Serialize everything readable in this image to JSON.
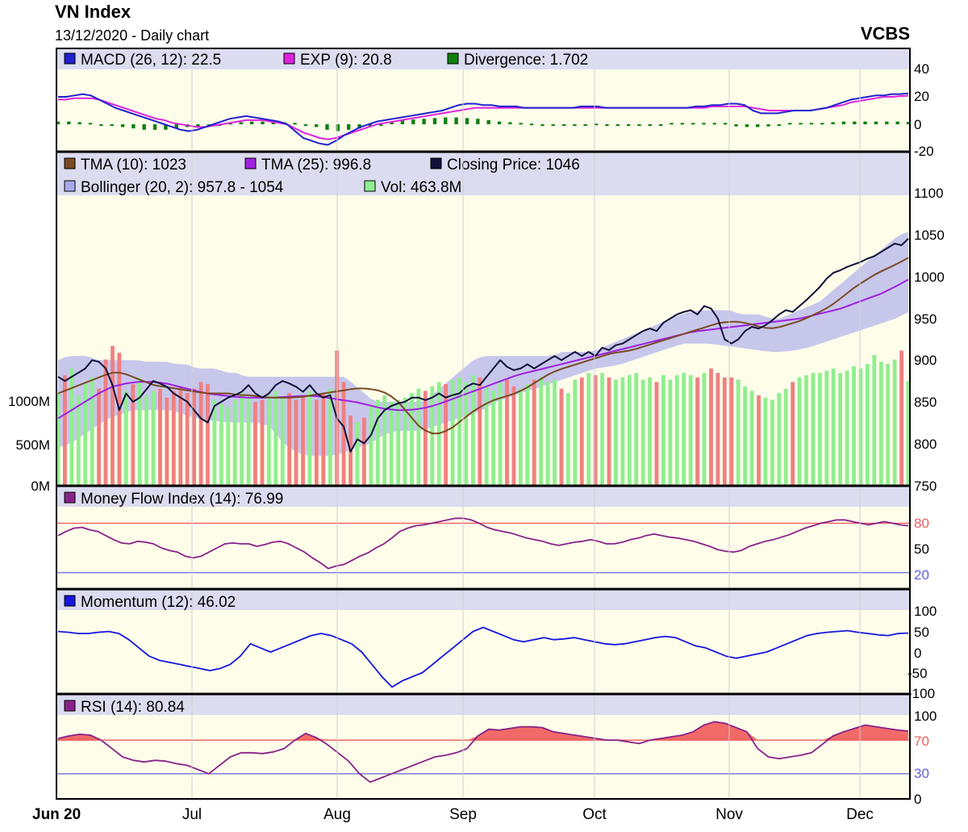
{
  "header": {
    "title": "VN Index",
    "subtitle": "13/12/2020 - Daily chart",
    "brand": "VCBS"
  },
  "colors": {
    "plot_bg": "#fdfdea",
    "legend_bg": "#dcdcf0",
    "bollinger_fill": "#b4b4ec",
    "macd": "#2020d0",
    "exp": "#e020e0",
    "divergence": "#108010",
    "tma10": "#7a4a22",
    "tma25": "#a020e0",
    "close": "#101038",
    "vol_up": "#90ee90",
    "vol_down": "#f08080",
    "mfi": "#882288",
    "momentum": "#1515e0",
    "rsi": "#882288",
    "upper_line": "#ef5b5b",
    "lower_line": "#7070e0",
    "overbought_fill": "#f05050"
  },
  "x_axis": {
    "ticks": [
      "Jun 20",
      "Jul",
      "Aug",
      "Sep",
      "Oct",
      "Nov",
      "Dec"
    ]
  },
  "panels": {
    "macd": {
      "legend": [
        "MACD (26, 12): 22.5",
        "EXP (9): 20.8",
        "Divergence: 1.702"
      ],
      "ticks": [
        "40",
        "20",
        "0",
        "-20"
      ]
    },
    "price": {
      "legend_row1": [
        "TMA (10): 1023",
        "TMA (25): 996.8",
        "Closing Price: 1046"
      ],
      "legend_row2": [
        "Bollinger (20, 2): 957.8 - 1054",
        "Vol: 463.8M"
      ],
      "ticks": [
        "1100",
        "1050",
        "1000",
        "950",
        "900",
        "850",
        "800",
        "750"
      ],
      "volume_ticks": [
        "1000M",
        "500M",
        "0M"
      ]
    },
    "mfi": {
      "legend": [
        "Money Flow Index (14): 76.99"
      ],
      "ticks": [
        "80",
        "50",
        "20"
      ]
    },
    "momentum": {
      "legend": [
        "Momentum (12): 46.02"
      ],
      "ticks": [
        "100",
        "50",
        "0",
        "-50",
        "-100"
      ]
    },
    "rsi": {
      "legend": [
        "RSI (14): 80.84"
      ],
      "ticks": [
        "100",
        "70",
        "30",
        "0"
      ]
    }
  },
  "chart_data": {
    "type": "line",
    "title": "VN Index",
    "subtitle": "13/12/2020 - Daily chart",
    "x_tick_labels": [
      "Jun 20",
      "Jul",
      "Aug",
      "Sep",
      "Oct",
      "Nov",
      "Dec"
    ],
    "close": [
      880,
      875,
      880,
      885,
      890,
      900,
      898,
      890,
      870,
      840,
      860,
      850,
      855,
      865,
      875,
      872,
      868,
      860,
      855,
      850,
      840,
      830,
      825,
      845,
      850,
      855,
      858,
      862,
      870,
      860,
      855,
      860,
      870,
      875,
      872,
      868,
      862,
      870,
      860,
      855,
      858,
      830,
      820,
      790,
      805,
      800,
      810,
      830,
      840,
      845,
      848,
      850,
      855,
      855,
      852,
      855,
      860,
      855,
      858,
      860,
      868,
      872,
      870,
      880,
      890,
      900,
      892,
      888,
      890,
      895,
      890,
      895,
      900,
      905,
      900,
      905,
      910,
      905,
      910,
      905,
      915,
      912,
      918,
      920,
      925,
      930,
      935,
      938,
      935,
      945,
      950,
      955,
      958,
      960,
      955,
      965,
      962,
      950,
      925,
      920,
      925,
      935,
      940,
      938,
      942,
      948,
      955,
      960,
      958,
      965,
      972,
      980,
      988,
      998,
      1005,
      1008,
      1012,
      1015,
      1018,
      1022,
      1025,
      1030,
      1035,
      1040,
      1038,
      1046
    ],
    "macd": [
      20,
      20,
      21,
      22,
      21,
      18,
      15,
      12,
      10,
      8,
      6,
      4,
      2,
      0,
      -2,
      -4,
      -5,
      -4,
      -2,
      0,
      2,
      4,
      5,
      6,
      5,
      4,
      3,
      2,
      0,
      -5,
      -10,
      -12,
      -14,
      -15,
      -12,
      -8,
      -5,
      -2,
      0,
      2,
      3,
      4,
      5,
      6,
      7,
      8,
      9,
      10,
      12,
      14,
      15,
      15,
      14,
      14,
      13,
      13,
      13,
      12,
      12,
      12,
      12,
      12,
      12,
      12,
      13,
      13,
      13,
      12,
      12,
      12,
      12,
      12,
      12,
      12,
      12,
      12,
      12,
      12,
      13,
      13,
      14,
      14,
      15,
      15,
      14,
      10,
      8,
      8,
      8,
      9,
      10,
      10,
      10,
      11,
      12,
      14,
      16,
      18,
      19,
      20,
      21,
      21,
      22,
      22,
      22.5
    ],
    "exp": [
      18,
      18,
      19,
      19,
      19,
      18,
      16,
      14,
      12,
      10,
      8,
      6,
      4,
      3,
      1,
      0,
      -1,
      -2,
      -2,
      -1,
      0,
      1,
      2,
      3,
      3,
      3,
      2,
      1,
      0,
      -3,
      -6,
      -8,
      -10,
      -11,
      -10,
      -8,
      -6,
      -4,
      -2,
      0,
      1,
      2,
      3,
      4,
      5,
      6,
      7,
      8,
      9,
      10,
      11,
      12,
      12,
      12,
      12,
      12,
      12,
      12,
      12,
      12,
      12,
      12,
      12,
      12,
      12,
      12,
      12,
      12,
      12,
      12,
      12,
      12,
      12,
      12,
      12,
      12,
      12,
      12,
      12,
      12,
      13,
      13,
      13,
      13,
      13,
      12,
      11,
      10,
      10,
      10,
      10,
      10,
      10,
      11,
      12,
      13,
      14,
      16,
      17,
      18,
      19,
      20,
      20,
      20.5,
      20.8
    ],
    "divergence": [
      2,
      2,
      1.5,
      1,
      0,
      -1,
      -2,
      -3,
      -4,
      -4,
      -4,
      -3,
      -2,
      -2,
      -1,
      0,
      1,
      1.5,
      2,
      2,
      2,
      1.5,
      1,
      0,
      -2,
      -4,
      -5,
      -4,
      -3,
      -2,
      0,
      2,
      3,
      3.5,
      4,
      4.5,
      5,
      5,
      4.5,
      4,
      3,
      2,
      1.5,
      1,
      0.5,
      0,
      0,
      0,
      0,
      0,
      0.5,
      0,
      0,
      0,
      0,
      0,
      0,
      1,
      1,
      1,
      1,
      1,
      1,
      -1.5,
      -2,
      -2,
      -1.5,
      -1,
      1,
      1,
      1,
      1,
      1.5,
      2,
      2,
      2,
      2,
      2,
      2,
      1.7
    ],
    "bollinger_upper": [
      900,
      905,
      905,
      905,
      900,
      900,
      900,
      900,
      900,
      898,
      898,
      898,
      895,
      895,
      890,
      890,
      890,
      885,
      885,
      880,
      880,
      880,
      880,
      880,
      880,
      880,
      880,
      880,
      880,
      880,
      870,
      860,
      850,
      850,
      850,
      850,
      850,
      850,
      860,
      870,
      880,
      890,
      900,
      905,
      905,
      905,
      905,
      905,
      905,
      905,
      905,
      910,
      910,
      910,
      910,
      915,
      920,
      925,
      930,
      935,
      940,
      945,
      950,
      955,
      958,
      960,
      960,
      960,
      960,
      955,
      955,
      955,
      950,
      950,
      955,
      960,
      965,
      970,
      980,
      990,
      1000,
      1010,
      1020,
      1030,
      1040,
      1050,
      1054
    ],
    "bollinger_lower": [
      795,
      800,
      810,
      820,
      830,
      835,
      840,
      840,
      840,
      840,
      835,
      830,
      828,
      826,
      825,
      825,
      825,
      820,
      800,
      790,
      785,
      785,
      785,
      790,
      795,
      800,
      810,
      815,
      815,
      815,
      820,
      825,
      830,
      835,
      840,
      850,
      855,
      860,
      865,
      870,
      875,
      880,
      885,
      890,
      892,
      895,
      900,
      905,
      910,
      915,
      920,
      920,
      920,
      918,
      916,
      914,
      912,
      910,
      910,
      912,
      915,
      920,
      925,
      930,
      935,
      940,
      945,
      950,
      957.8
    ],
    "tma10": [
      860,
      865,
      870,
      875,
      880,
      885,
      885,
      880,
      875,
      870,
      868,
      866,
      864,
      862,
      860,
      860,
      860,
      858,
      858,
      856,
      855,
      855,
      855,
      856,
      858,
      860,
      862,
      864,
      866,
      866,
      864,
      860,
      850,
      835,
      820,
      812,
      812,
      818,
      828,
      838,
      846,
      852,
      856,
      860,
      866,
      874,
      882,
      888,
      892,
      896,
      900,
      904,
      908,
      910,
      912,
      916,
      920,
      924,
      928,
      932,
      936,
      940,
      944,
      946,
      946,
      944,
      940,
      938,
      940,
      944,
      948,
      954,
      960,
      968,
      978,
      988,
      996,
      1004,
      1010,
      1016,
      1023
    ],
    "tma25": [
      830,
      840,
      850,
      860,
      868,
      872,
      874,
      874,
      872,
      868,
      864,
      860,
      858,
      856,
      855,
      855,
      855,
      856,
      857,
      857,
      855,
      852,
      850,
      846,
      842,
      840,
      840,
      842,
      846,
      852,
      858,
      864,
      870,
      876,
      882,
      886,
      890,
      894,
      898,
      902,
      906,
      910,
      914,
      918,
      922,
      926,
      930,
      934,
      936,
      938,
      940,
      942,
      944,
      946,
      948,
      950,
      954,
      958,
      962,
      968,
      974,
      980,
      988,
      996.8
    ],
    "volume_millions": [
      410,
      490,
      520,
      400,
      450,
      480,
      430,
      560,
      620,
      590,
      420,
      450,
      480,
      400,
      420,
      430,
      390,
      420,
      440,
      410,
      430,
      460,
      450,
      380,
      360,
      350,
      380,
      410,
      400,
      370,
      380,
      400,
      420,
      390,
      410,
      380,
      400,
      420,
      380,
      410,
      430,
      600,
      460,
      310,
      280,
      300,
      350,
      380,
      400,
      370,
      380,
      390,
      410,
      430,
      420,
      440,
      460,
      450,
      470,
      480,
      460,
      490,
      480,
      440,
      420,
      460,
      470,
      440,
      430,
      450,
      470,
      480,
      460,
      470,
      430,
      410,
      470,
      480,
      500,
      490,
      500,
      480,
      470,
      480,
      490,
      500,
      470,
      480,
      460,
      490,
      470,
      490,
      500,
      490,
      480,
      500,
      520,
      500,
      480,
      480,
      470,
      440,
      420,
      400,
      390,
      380,
      410,
      430,
      460,
      480,
      490,
      500,
      500,
      510,
      520,
      500,
      510,
      530,
      520,
      540,
      580,
      550,
      540,
      560,
      600,
      463.8
    ],
    "mfi": [
      65,
      70,
      74,
      75,
      72,
      70,
      65,
      60,
      56,
      55,
      58,
      57,
      55,
      50,
      47,
      45,
      40,
      38,
      40,
      45,
      50,
      55,
      56,
      55,
      55,
      52,
      54,
      57,
      58,
      55,
      50,
      45,
      38,
      32,
      25,
      28,
      30,
      35,
      40,
      44,
      50,
      55,
      62,
      70,
      74,
      77,
      78,
      80,
      82,
      84,
      86,
      86,
      84,
      80,
      75,
      72,
      70,
      68,
      65,
      62,
      60,
      58,
      55,
      53,
      55,
      57,
      58,
      60,
      58,
      55,
      55,
      57,
      60,
      62,
      65,
      67,
      65,
      63,
      62,
      60,
      58,
      55,
      52,
      48,
      46,
      45,
      47,
      52,
      55,
      58,
      60,
      63,
      66,
      70,
      74,
      77,
      80,
      82,
      84,
      84,
      82,
      80,
      78,
      80,
      82,
      80,
      78,
      77
    ],
    "momentum": [
      50,
      48,
      45,
      45,
      48,
      50,
      45,
      30,
      10,
      -10,
      -20,
      -25,
      -30,
      -35,
      -40,
      -45,
      -40,
      -30,
      -10,
      20,
      10,
      0,
      10,
      20,
      30,
      40,
      45,
      40,
      30,
      20,
      0,
      -30,
      -60,
      -85,
      -70,
      -60,
      -50,
      -30,
      -10,
      10,
      30,
      50,
      60,
      50,
      40,
      30,
      25,
      30,
      35,
      30,
      32,
      35,
      30,
      25,
      20,
      18,
      20,
      25,
      30,
      35,
      38,
      35,
      25,
      15,
      10,
      0,
      -10,
      -15,
      -10,
      -5,
      0,
      10,
      20,
      30,
      40,
      45,
      48,
      50,
      52,
      48,
      45,
      42,
      40,
      45,
      46.02
    ],
    "rsi": [
      72,
      75,
      77,
      76,
      70,
      60,
      50,
      46,
      44,
      46,
      45,
      42,
      40,
      35,
      30,
      40,
      50,
      55,
      55,
      54,
      56,
      60,
      70,
      78,
      73,
      65,
      55,
      45,
      30,
      20,
      25,
      30,
      35,
      40,
      45,
      50,
      52,
      55,
      60,
      75,
      83,
      82,
      84,
      86,
      86,
      85,
      80,
      78,
      76,
      74,
      72,
      70,
      70,
      68,
      66,
      70,
      72,
      74,
      76,
      80,
      88,
      92,
      90,
      85,
      80,
      60,
      50,
      48,
      50,
      52,
      55,
      65,
      75,
      80,
      84,
      88,
      86,
      84,
      82,
      80.84
    ],
    "panels": [
      {
        "name": "MACD",
        "ylim": [
          -20,
          40
        ]
      },
      {
        "name": "Price",
        "ylim": [
          750,
          1100
        ],
        "volume_ylim": [
          0,
          1300
        ]
      },
      {
        "name": "Money Flow Index",
        "ylim": [
          0,
          100
        ],
        "reference_lines": [
          20,
          80
        ]
      },
      {
        "name": "Momentum",
        "ylim": [
          -100,
          100
        ]
      },
      {
        "name": "RSI",
        "ylim": [
          0,
          100
        ],
        "reference_lines": [
          30,
          70
        ]
      }
    ]
  }
}
